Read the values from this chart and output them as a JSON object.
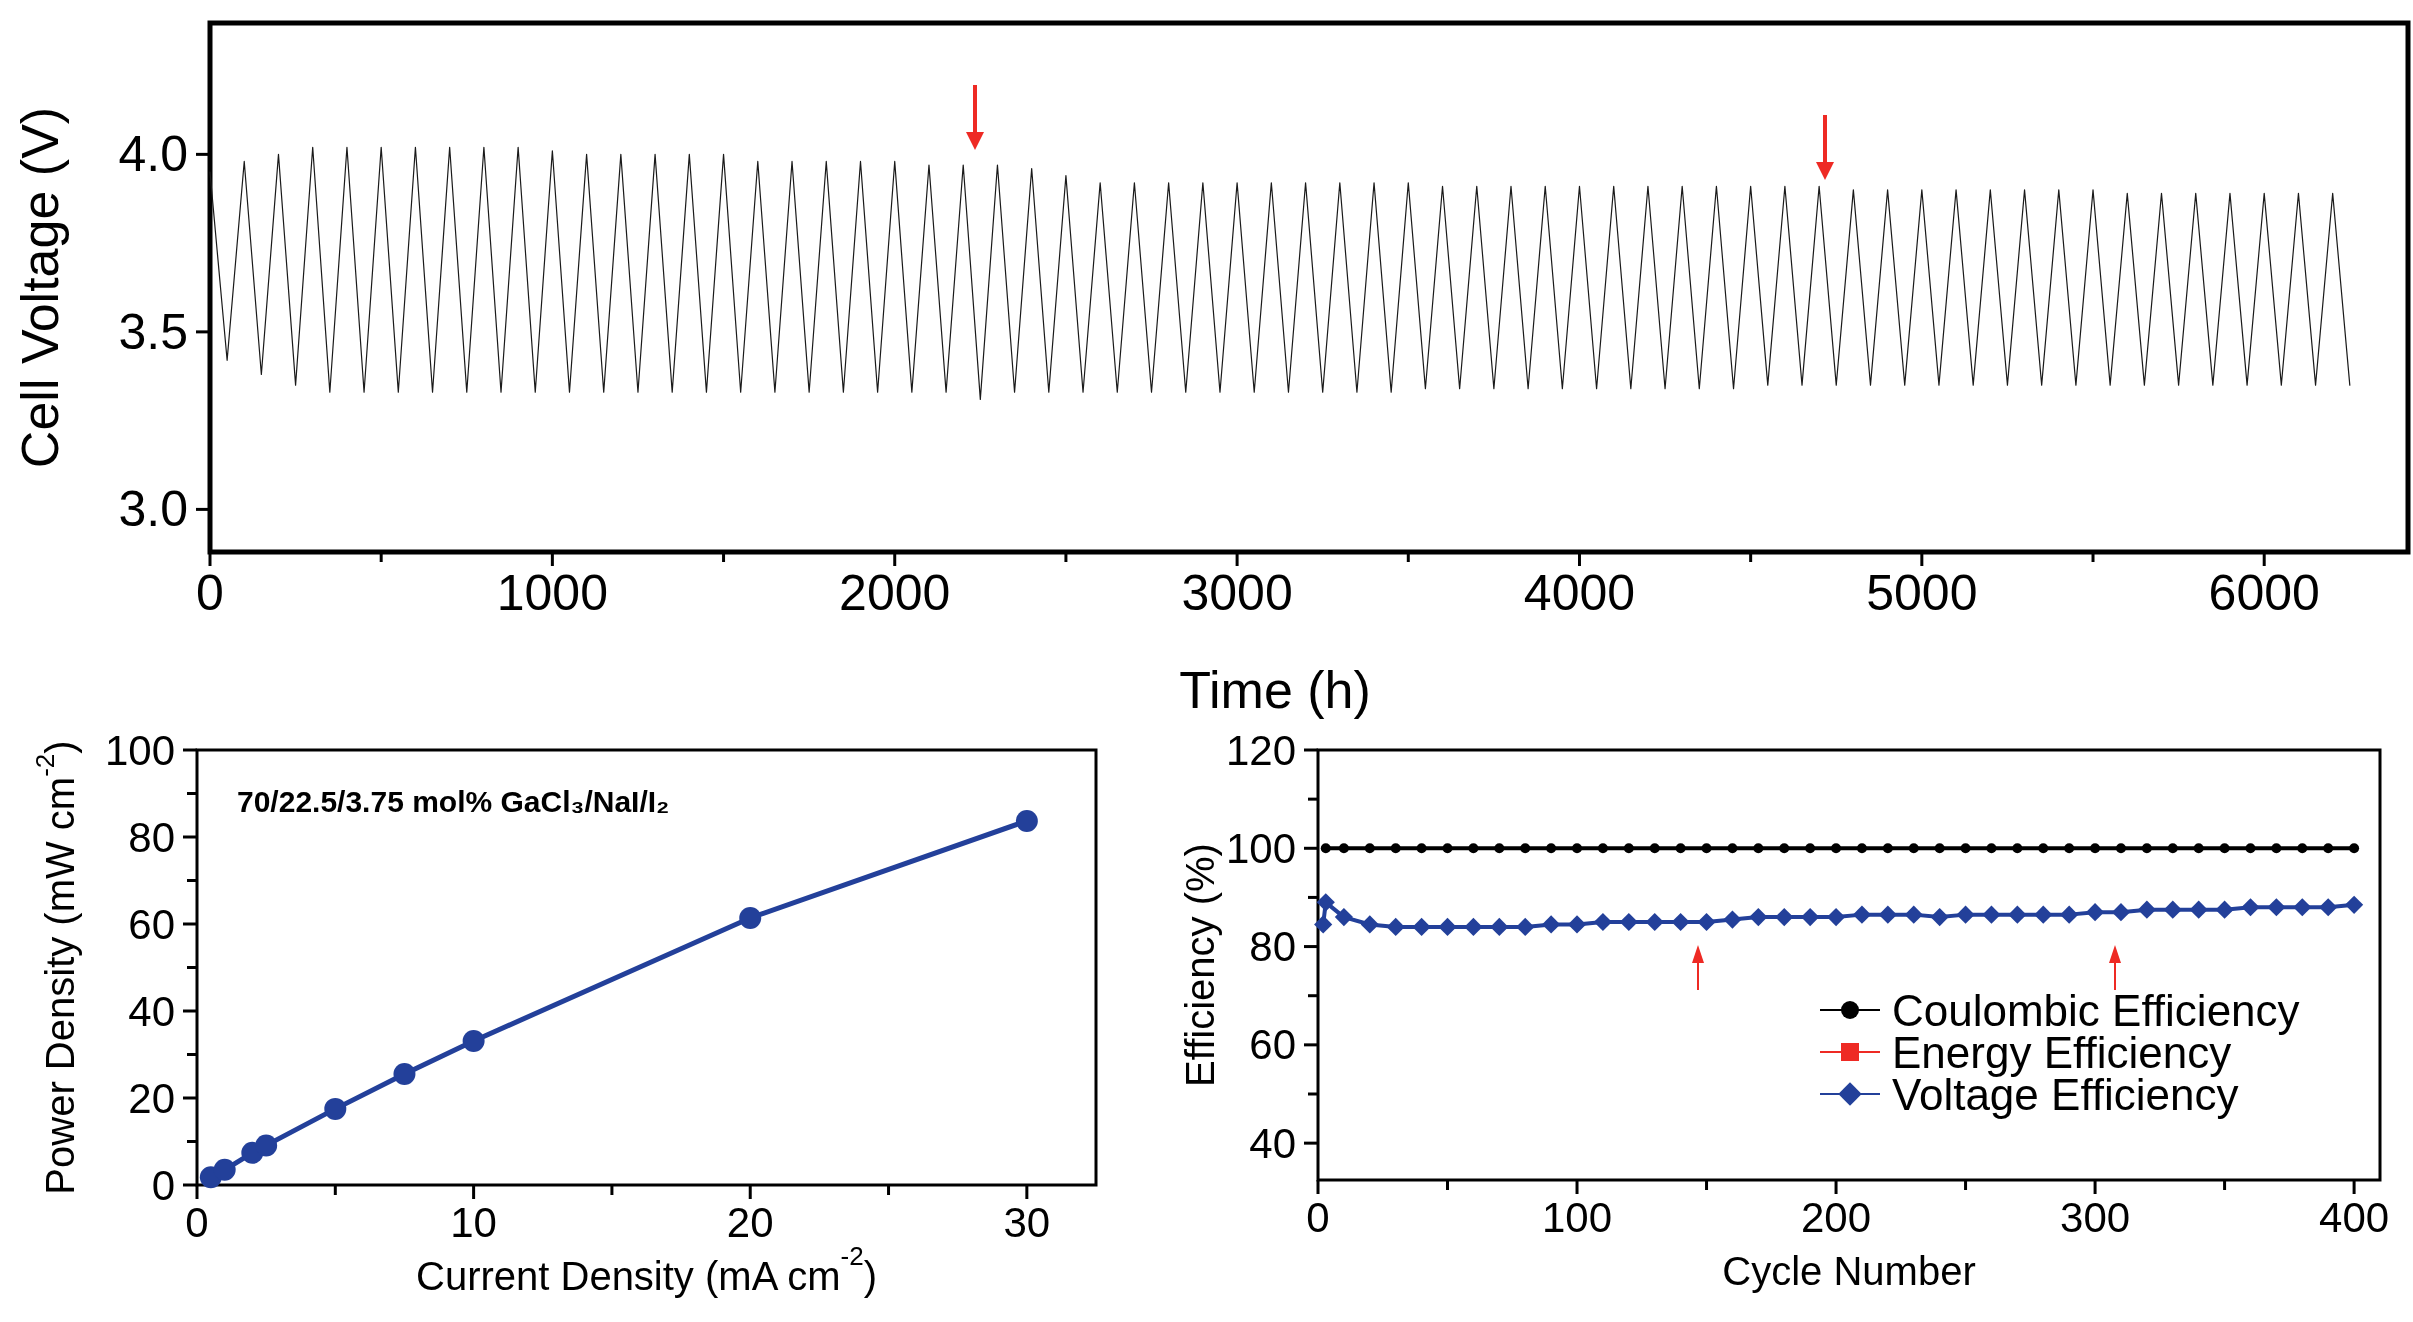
{
  "chart_data": [
    {
      "type": "line",
      "xlabel": "Time (h)",
      "ylabel": "Cell Voltage (V)",
      "xlim": [
        0,
        6420
      ],
      "ylim": [
        2.88,
        4.37
      ],
      "xticks": [
        0,
        {
          "value": 500,
          "label": null
        },
        1000,
        {
          "value": 1500,
          "label": null
        },
        2000,
        {
          "value": 2500,
          "label": null
        },
        3000,
        {
          "value": 3500,
          "label": null
        },
        4000,
        {
          "value": 4500,
          "label": null
        },
        5000,
        {
          "value": 5500,
          "label": null
        },
        6000
      ],
      "yticks": [
        {
          "value": 3,
          "label": "3.0"
        },
        {
          "value": 3.5,
          "label": "3.5"
        },
        {
          "value": 4,
          "label": "4.0"
        }
      ],
      "series": [
        {
          "color": "#1a1a1a",
          "x": [
            0,
            50,
            100,
            150,
            200,
            250,
            300,
            350,
            400,
            450,
            500,
            550,
            600,
            650,
            700,
            750,
            800,
            850,
            900,
            950,
            1000,
            1050,
            1100,
            1150,
            1200,
            1250,
            1300,
            1350,
            1400,
            1450,
            1500,
            1550,
            1600,
            1650,
            1700,
            1750,
            1800,
            1850,
            1900,
            1950,
            2000,
            2050,
            2100,
            2150,
            2200,
            2250,
            2300,
            2350,
            2400,
            2450,
            2500,
            2550,
            2600,
            2650,
            2700,
            2750,
            2800,
            2850,
            2900,
            2950,
            3000,
            3050,
            3100,
            3150,
            3200,
            3250,
            3300,
            3350,
            3400,
            3450,
            3500,
            3550,
            3600,
            3650,
            3700,
            3750,
            3800,
            3850,
            3900,
            3950,
            4000,
            4050,
            4100,
            4150,
            4200,
            4250,
            4300,
            4350,
            4400,
            4450,
            4500,
            4550,
            4600,
            4650,
            4700,
            4750,
            4800,
            4850,
            4900,
            4950,
            5000,
            5050,
            5100,
            5150,
            5200,
            5250,
            5300,
            5350,
            5400,
            5450,
            5500,
            5550,
            5600,
            5650,
            5700,
            5750,
            5800,
            5850,
            5900,
            5950,
            6000,
            6050,
            6100,
            6150,
            6200,
            6250
          ],
          "values": [
            3.95,
            3.42,
            3.98,
            3.38,
            4.0,
            3.35,
            4.02,
            3.33,
            4.02,
            3.33,
            4.02,
            3.33,
            4.02,
            3.33,
            4.02,
            3.33,
            4.02,
            3.33,
            4.02,
            3.33,
            4.01,
            3.33,
            4.0,
            3.33,
            4.0,
            3.33,
            4.0,
            3.33,
            4.0,
            3.33,
            4.0,
            3.33,
            3.98,
            3.33,
            3.98,
            3.33,
            3.98,
            3.33,
            3.98,
            3.33,
            3.98,
            3.33,
            3.97,
            3.33,
            3.97,
            3.31,
            3.97,
            3.33,
            3.96,
            3.33,
            3.94,
            3.33,
            3.92,
            3.33,
            3.92,
            3.33,
            3.92,
            3.33,
            3.92,
            3.33,
            3.92,
            3.33,
            3.92,
            3.33,
            3.92,
            3.33,
            3.92,
            3.33,
            3.92,
            3.33,
            3.92,
            3.34,
            3.91,
            3.34,
            3.91,
            3.34,
            3.91,
            3.34,
            3.91,
            3.34,
            3.91,
            3.34,
            3.91,
            3.34,
            3.91,
            3.34,
            3.91,
            3.34,
            3.91,
            3.34,
            3.91,
            3.35,
            3.91,
            3.35,
            3.91,
            3.35,
            3.9,
            3.35,
            3.9,
            3.35,
            3.9,
            3.35,
            3.9,
            3.35,
            3.9,
            3.35,
            3.9,
            3.35,
            3.9,
            3.35,
            3.9,
            3.35,
            3.89,
            3.35,
            3.89,
            3.35,
            3.89,
            3.35,
            3.89,
            3.35,
            3.89,
            3.35,
            3.89,
            3.35,
            3.89,
            3.35
          ]
        }
      ]
    },
    {
      "type": "line",
      "xlabel": "Current Density (mA cm$^{-2}$)",
      "ylabel": "Power Density (mW cm$^{-2}$)",
      "xlim": [
        0,
        32.5
      ],
      "ylim": [
        0,
        100
      ],
      "xticks": [
        0,
        {
          "value": 5,
          "label": null
        },
        10,
        {
          "value": 15,
          "label": null
        },
        20,
        {
          "value": 25,
          "label": null
        },
        30
      ],
      "yticks": [
        0,
        {
          "value": 10,
          "label": null
        },
        20,
        {
          "value": 30,
          "label": null
        },
        40,
        {
          "value": 50,
          "label": null
        },
        60,
        {
          "value": 70,
          "label": null
        },
        80,
        {
          "value": 90,
          "label": null
        },
        100
      ],
      "annotations": [
        "70/22.5/3.75 mol% GaCl₃/NaI/I₂"
      ],
      "marker": "circle",
      "series": [
        {
          "color": "#23409a",
          "x": [
            0.5,
            1,
            2,
            2.5,
            5,
            7.5,
            10,
            20,
            30
          ],
          "values": [
            1.8,
            3.5,
            7.4,
            9.1,
            17.5,
            25.5,
            33.1,
            61.4,
            83.7
          ]
        }
      ]
    },
    {
      "type": "line",
      "xlabel": "Cycle Number",
      "ylabel": "Efficiency (%)",
      "xlim": [
        0,
        410
      ],
      "ylim": [
        32.5,
        120
      ],
      "xticks": [
        0,
        {
          "value": 50,
          "label": null
        },
        100,
        {
          "value": 150,
          "label": null
        },
        200,
        {
          "value": 250,
          "label": null
        },
        300,
        {
          "value": 350,
          "label": null
        },
        400
      ],
      "yticks": [
        40,
        {
          "value": 50,
          "label": null
        },
        60,
        {
          "value": 70,
          "label": null
        },
        80,
        {
          "value": 90,
          "label": null
        },
        100,
        {
          "value": 110,
          "label": null
        },
        120
      ],
      "legend": "bottom right",
      "series": [
        {
          "name": "Coulombic Efficiency",
          "color": "#000000",
          "marker": "circle",
          "x": [
            3,
            10,
            20,
            30,
            40,
            50,
            60,
            70,
            80,
            90,
            100,
            110,
            120,
            130,
            140,
            150,
            160,
            170,
            180,
            190,
            200,
            210,
            220,
            230,
            240,
            250,
            260,
            270,
            280,
            290,
            300,
            310,
            320,
            330,
            340,
            350,
            360,
            370,
            380,
            390,
            400
          ],
          "values": [
            100,
            100,
            100,
            100,
            100,
            100,
            100,
            100,
            100,
            100,
            100,
            100,
            100,
            100,
            100,
            100,
            100,
            100,
            100,
            100,
            100,
            100,
            100,
            100,
            100,
            100,
            100,
            100,
            100,
            100,
            100,
            100,
            100,
            100,
            100,
            100,
            100,
            100,
            100,
            100,
            100
          ]
        },
        {
          "name": "Energy Efficiency",
          "color": "#ee2a24",
          "marker": "square"
        },
        {
          "name": "Voltage Efficiency",
          "color": "#23409a",
          "marker": "diamond",
          "x": [
            2,
            3,
            10,
            20,
            30,
            40,
            50,
            60,
            70,
            80,
            90,
            100,
            110,
            120,
            130,
            140,
            150,
            160,
            170,
            180,
            190,
            200,
            210,
            220,
            230,
            240,
            250,
            260,
            270,
            280,
            290,
            300,
            310,
            320,
            330,
            340,
            350,
            360,
            370,
            380,
            390,
            400
          ],
          "values": [
            84.5,
            89,
            86,
            84.5,
            84,
            84,
            84,
            84,
            84,
            84,
            84.5,
            84.5,
            85,
            85,
            85,
            85,
            85,
            85.5,
            86,
            86,
            86,
            86,
            86.5,
            86.5,
            86.5,
            86,
            86.5,
            86.5,
            86.5,
            86.5,
            86.5,
            87,
            87,
            87.5,
            87.5,
            87.5,
            87.5,
            88,
            88,
            88,
            88,
            88.5
          ]
        }
      ]
    }
  ]
}
